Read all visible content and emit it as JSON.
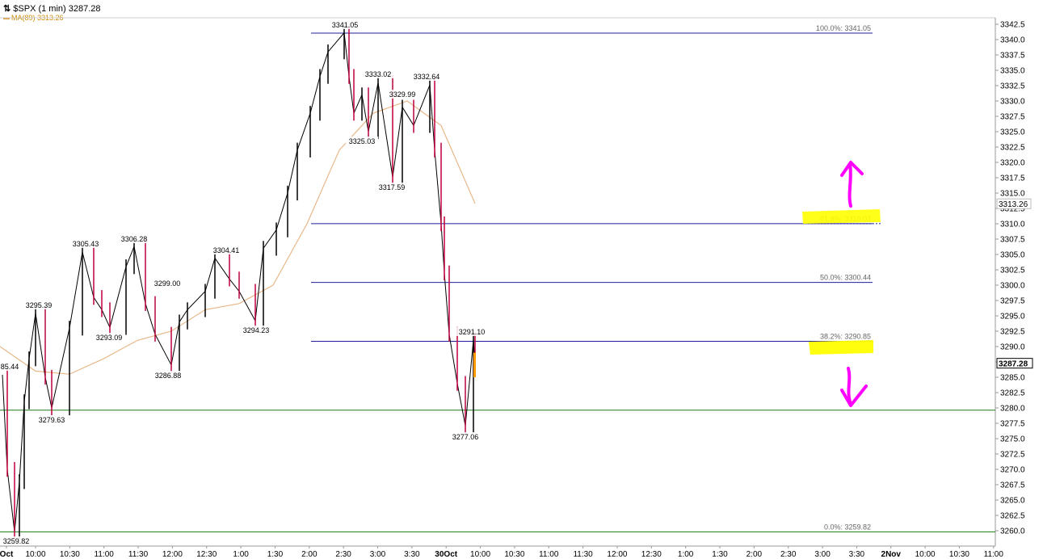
{
  "header": {
    "symbol": "$SPX (1 min)",
    "last": "3287.28",
    "icon": "bar-chart-icon"
  },
  "ma_legend": {
    "label": "MA(89)",
    "value": "3313.26"
  },
  "colors": {
    "fib_line": "#1f1fa0",
    "support_line": "#1a7a1a",
    "price_up": "#000000",
    "price_down": "#c0003a",
    "ma_line": "#e8b88a",
    "highlight": "#ffff00",
    "arrow": "#ff00ff"
  },
  "chart_data": {
    "type": "line",
    "title": "$SPX (1 min) 3287.28",
    "ylim": [
      3258.5,
      3343.5
    ],
    "y_ticks": [
      "3342.5",
      "3340.0",
      "3337.5",
      "3335.0",
      "3332.5",
      "3330.0",
      "3327.5",
      "3325.0",
      "3322.5",
      "3320.0",
      "3317.5",
      "3315.0",
      "3312.5",
      "3310.0",
      "3307.5",
      "3305.0",
      "3302.5",
      "3300.0",
      "3297.5",
      "3295.0",
      "3292.5",
      "3290.0",
      "3287.5",
      "3285.0",
      "3282.5",
      "3280.0",
      "3277.5",
      "3275.0",
      "3272.5",
      "3270.0",
      "3267.5",
      "3265.0",
      "3262.5",
      "3260.0"
    ],
    "x_ticks": [
      "Oct",
      "10:00",
      "10:30",
      "11:00",
      "11:30",
      "12:00",
      "12:30",
      "1:00",
      "1:30",
      "2:00",
      "2:30",
      "3:00",
      "3:30",
      "30Oct",
      "10:00",
      "10:30",
      "11:00",
      "11:30",
      "12:00",
      "12:30",
      "1:00",
      "1:30",
      "2:00",
      "2:30",
      "3:00",
      "3:30",
      "2Nov",
      "10:00",
      "10:30",
      "11:00"
    ],
    "price_label": "3287.28",
    "ma_label": "3313.26",
    "series": [
      {
        "name": "$SPX (1 min)",
        "x": [
          "9:30",
          "9:35",
          "9:40",
          "9:45",
          "9:50",
          "9:55",
          "10:00",
          "10:10",
          "10:20",
          "10:30",
          "10:40",
          "10:50",
          "11:00",
          "11:10",
          "11:20",
          "11:30",
          "11:40",
          "11:50",
          "12:00",
          "12:10",
          "12:20",
          "12:30",
          "12:40",
          "12:50",
          "1:00",
          "1:10",
          "1:20",
          "1:30",
          "1:40",
          "1:50",
          "2:00",
          "2:10",
          "2:20",
          "2:30",
          "2:35",
          "2:40",
          "2:50",
          "3:00",
          "3:10",
          "3:20",
          "3:30",
          "3:40",
          "3:50",
          "3:55",
          "4:00",
          "30Oct 9:35",
          "9:40",
          "9:45",
          "9:50",
          "9:55",
          "10:00"
        ],
        "values": [
          3285.4,
          3270.0,
          3259.8,
          3268.0,
          3281.0,
          3288.0,
          3295.4,
          3285.0,
          3280.0,
          3293.0,
          3305.4,
          3298.0,
          3296.0,
          3293.1,
          3303.0,
          3306.3,
          3297.0,
          3292.0,
          3287.0,
          3294.0,
          3296.0,
          3299.0,
          3304.4,
          3301.0,
          3299.0,
          3294.2,
          3306.0,
          3309.0,
          3315.0,
          3322.0,
          3328.0,
          3334.0,
          3338.0,
          3341.1,
          3334.0,
          3328.0,
          3331.0,
          3325.0,
          3333.0,
          3317.6,
          3329.0,
          3326.0,
          3332.6,
          3322.0,
          3310.0,
          3302.0,
          3292.0,
          3284.0,
          3277.1,
          3291.1,
          3287.3
        ]
      },
      {
        "name": "MA(89)",
        "x": [
          "9:30",
          "10:00",
          "10:30",
          "11:00",
          "11:30",
          "12:00",
          "12:30",
          "1:00",
          "1:30",
          "2:00",
          "2:30",
          "3:00",
          "3:30",
          "4:00",
          "30Oct 9:35"
        ],
        "values": [
          3290.0,
          3286.0,
          3285.5,
          3288.0,
          3291.0,
          3292.5,
          3296.0,
          3297.0,
          3300.0,
          3310.0,
          3322.0,
          3328.0,
          3330.0,
          3326.0,
          3313.3
        ]
      }
    ],
    "annotations": [
      "3341.05",
      "3333.02",
      "3332.64",
      "3329.99",
      "3325.03",
      "3317.59",
      "3306.28",
      "3305.43",
      "3304.41",
      "3299.00",
      "3295.39",
      "3294.23",
      "3293.09",
      "3286.88",
      "3279.63",
      "3259.82",
      "3291.10",
      "3277.06",
      "85.44"
    ],
    "fib_levels": [
      {
        "label": "100.0%: 3341.05",
        "value": 3341.05
      },
      {
        "label": "61.8%: 3310.02",
        "value": 3310.02
      },
      {
        "label": "50.0%: 3300.44",
        "value": 3300.44
      },
      {
        "label": "38.2%: 3290.85",
        "value": 3290.85
      },
      {
        "label": "0.0%: 3259.82",
        "value": 3259.82
      }
    ],
    "support_level": 3279.63
  }
}
